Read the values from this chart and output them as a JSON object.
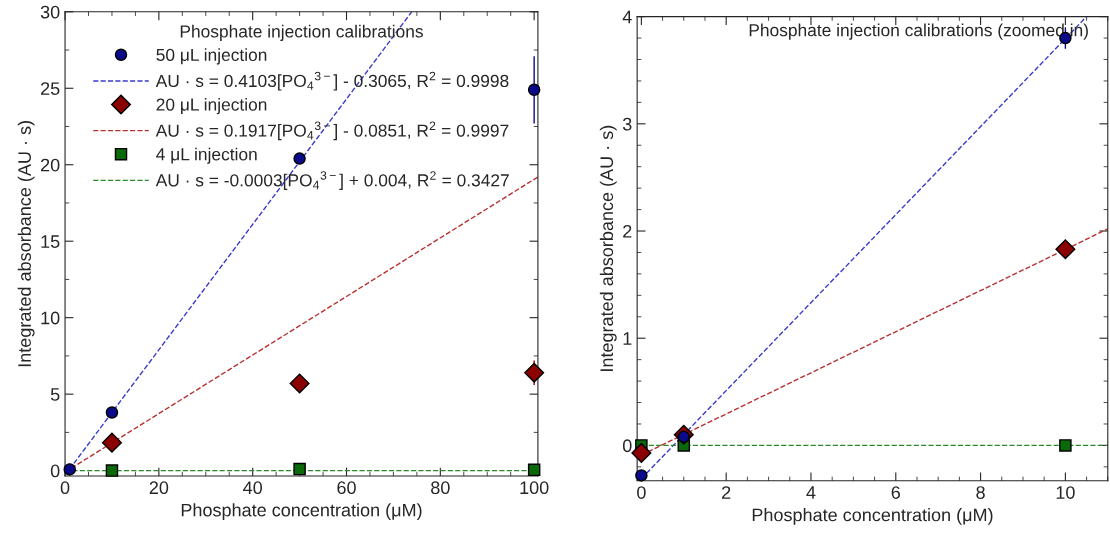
{
  "chart_data": [
    {
      "type": "scatter",
      "xlabel": "Phosphate concentration (μM)",
      "ylabel": "Integrated absorbance (AU · s)",
      "legend_title": "Phosphate injection calibrations",
      "legend": "top",
      "grid": false,
      "xlim": [
        0,
        100.8
      ],
      "ylim": [
        -0.35,
        30
      ],
      "xticks": [
        0,
        20,
        40,
        60,
        80,
        100
      ],
      "yticks": [
        0,
        5,
        10,
        15,
        20,
        25,
        30
      ],
      "x": [
        1,
        10,
        50,
        100
      ],
      "series": [
        {
          "name": "50 μL injection",
          "marker": "circle",
          "color": "#0a0a8a",
          "values": [
            0.08,
            3.8,
            20.4,
            24.9
          ],
          "errors": [
            null,
            0.1,
            null,
            2.2
          ]
        },
        {
          "name": "AU · s = 0.4103[PO$_{4}$$^{3−}$] - 0.3065, R$^{2}$ = 0.9998",
          "type": "line",
          "line_style": "dashed",
          "color": "#3a3acc",
          "x": [
            0,
            73.9
          ],
          "values": [
            -0.3,
            30
          ]
        },
        {
          "name": "20 μL injection",
          "marker": "diamond",
          "color": "#8b0000",
          "values": [
            null,
            1.83,
            5.7,
            6.4
          ],
          "errors": [
            null,
            null,
            0.4,
            0.8
          ]
        },
        {
          "name": "AU · s = 0.1917[PO$_{4}$$^{3−}$] - 0.0851, R$^{2}$ = 0.9997",
          "type": "line",
          "line_style": "dashed",
          "color": "#b83030",
          "x": [
            0,
            100.8
          ],
          "values": [
            -0.1,
            19.2
          ]
        },
        {
          "name": "4 μL injection",
          "marker": "square",
          "color": "#0a6a0a",
          "values": [
            null,
            0.0,
            0.1,
            0.05
          ]
        },
        {
          "name": "AU · s = -0.0003[PO$_{4}$$^{3−}$] + 0.004, R$^{2}$ = 0.3427",
          "type": "line",
          "line_style": "dashed",
          "color": "#2a8a2a",
          "x": [
            0,
            100.8
          ],
          "values": [
            0.0,
            0.0
          ]
        }
      ]
    },
    {
      "type": "scatter",
      "title": "Phosphate injection calibrations (zoomed in)",
      "xlabel": "Phosphate concentration (μM)",
      "ylabel": "Integrated absorbance (AU · s)",
      "grid": false,
      "xlim": [
        -0.1,
        11
      ],
      "ylim": [
        -0.33,
        4
      ],
      "xticks": [
        0,
        2,
        4,
        6,
        8,
        10
      ],
      "yticks": [
        0,
        1,
        2,
        3,
        4
      ],
      "x": [
        0,
        1,
        10
      ],
      "series": [
        {
          "marker": "circle",
          "color": "#0a0a8a",
          "values": [
            -0.28,
            0.08,
            3.8
          ],
          "errors": [
            null,
            null,
            0.1
          ]
        },
        {
          "type": "line",
          "line_style": "dashed",
          "color": "#3a3acc",
          "x": [
            0,
            10.5
          ],
          "values": [
            -0.31,
            4.0
          ]
        },
        {
          "marker": "diamond",
          "color": "#8b0000",
          "values": [
            -0.07,
            0.1,
            1.83
          ]
        },
        {
          "type": "line",
          "line_style": "dashed",
          "color": "#b83030",
          "x": [
            0,
            11
          ],
          "values": [
            -0.09,
            2.02
          ]
        },
        {
          "marker": "square",
          "color": "#0a6a0a",
          "values": [
            0.0,
            0.0,
            0.0
          ]
        },
        {
          "type": "line",
          "line_style": "dashed",
          "color": "#2a8a2a",
          "x": [
            0,
            11
          ],
          "values": [
            0.0,
            0.0
          ]
        }
      ]
    }
  ]
}
